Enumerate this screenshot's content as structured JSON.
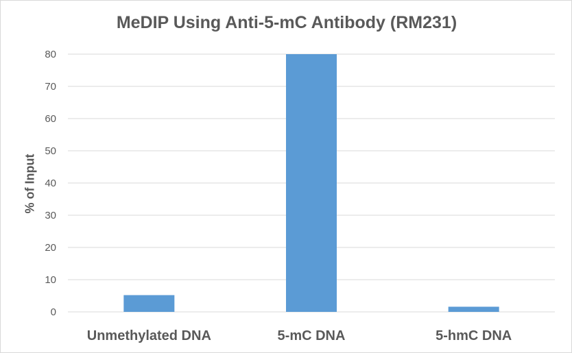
{
  "chart_data": {
    "type": "bar",
    "title": "MeDIP Using Anti-5-mC Antibody (RM231)",
    "xlabel": "",
    "ylabel": "% of Input",
    "categories": [
      "Unmethylated DNA",
      "5-mC DNA",
      "5-hmC DNA"
    ],
    "values": [
      5.2,
      80,
      1.6
    ],
    "ylim": [
      0,
      80
    ],
    "yticks": [
      0,
      10,
      20,
      30,
      40,
      50,
      60,
      70,
      80
    ],
    "grid": true,
    "legend": "none",
    "bar_color": "#5b9bd5",
    "grid_color": "#d9d9d9",
    "text_color": "#595959"
  }
}
